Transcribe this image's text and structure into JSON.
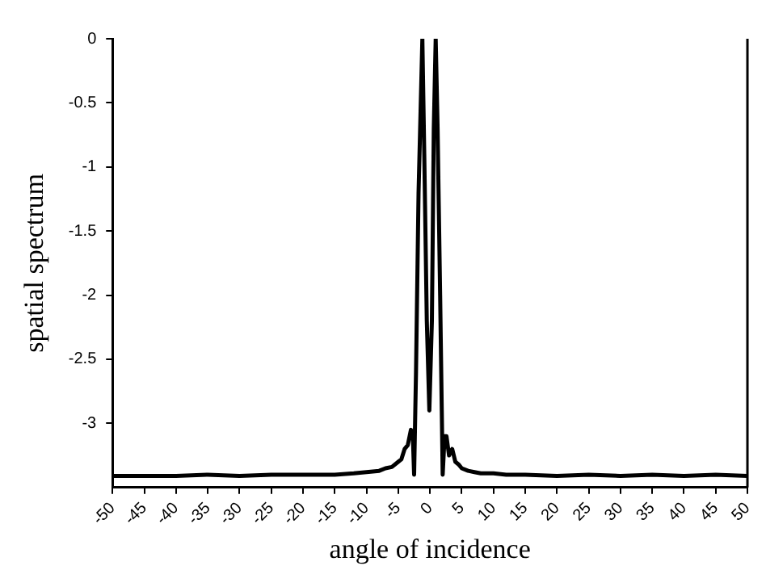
{
  "chart_data": {
    "type": "line",
    "xlabel": "angle of incidence",
    "ylabel": "spatial spectrum",
    "xlim": [
      -50,
      50
    ],
    "xticks": [
      -50,
      -45,
      -40,
      -35,
      -30,
      -25,
      -20,
      -15,
      -10,
      -5,
      0,
      5,
      10,
      15,
      20,
      25,
      30,
      35,
      40,
      45,
      50
    ],
    "ylim": [
      -3.5,
      0
    ],
    "yticks": [
      -3,
      -2.5,
      -2,
      -1.5,
      -1,
      -0.5,
      0
    ],
    "grid": false,
    "legend": false,
    "marker": "none",
    "line_style": "solid",
    "series": [
      {
        "color": "#000000",
        "x": [
          -50,
          -45,
          -40,
          -35,
          -30,
          -25,
          -20,
          -15,
          -12,
          -10,
          -8,
          -7,
          -6,
          -5,
          -4.5,
          -4,
          -3.5,
          -3,
          -2.7,
          -2.5,
          -2.2,
          -1.8,
          -1.5,
          -1.2,
          -0.9,
          -0.5,
          -0.1,
          0.3,
          0.6,
          0.9,
          1.2,
          1.6,
          2,
          2.3,
          2.6,
          3,
          3.5,
          4,
          4.5,
          5,
          6,
          7,
          8,
          10,
          12,
          15,
          20,
          25,
          30,
          35,
          40,
          45,
          50
        ],
        "values": [
          -3.41,
          -3.41,
          -3.41,
          -3.4,
          -3.41,
          -3.4,
          -3.4,
          -3.4,
          -3.39,
          -3.38,
          -3.37,
          -3.35,
          -3.34,
          -3.3,
          -3.28,
          -3.2,
          -3.17,
          -3.05,
          -3.1,
          -3.4,
          -2.6,
          -1.2,
          -0.6,
          0,
          -0.9,
          -2.2,
          -2.9,
          -2.2,
          -0.7,
          0,
          -0.7,
          -2.0,
          -3.4,
          -3.1,
          -3.1,
          -3.25,
          -3.2,
          -3.3,
          -3.32,
          -3.35,
          -3.37,
          -3.38,
          -3.39,
          -3.39,
          -3.4,
          -3.4,
          -3.41,
          -3.4,
          -3.41,
          -3.4,
          -3.41,
          -3.4,
          -3.41
        ]
      }
    ]
  }
}
